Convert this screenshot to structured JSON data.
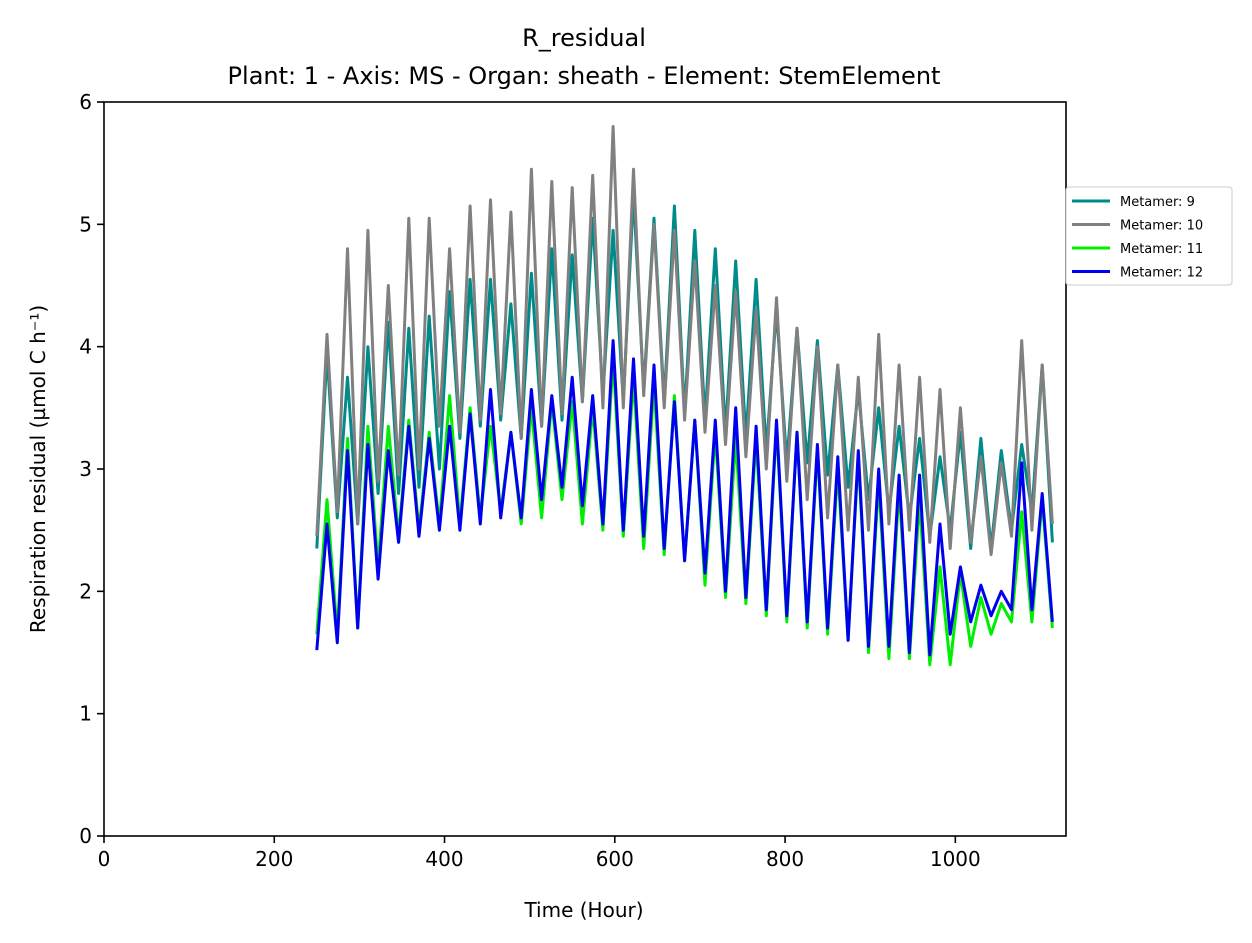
{
  "chart_data": {
    "type": "line",
    "title": "R_residual",
    "subtitle": "Plant: 1 - Axis: MS - Organ: sheath - Element: StemElement",
    "xlabel": "Time (Hour)",
    "ylabel": "Respiration residual (µmol C h⁻¹)",
    "xlim": [
      0,
      1130
    ],
    "ylim": [
      0,
      6
    ],
    "xticks": [
      0,
      200,
      400,
      600,
      800,
      1000
    ],
    "yticks": [
      0,
      1,
      2,
      3,
      4,
      5,
      6
    ],
    "grid": false,
    "legend_position": "outside-right",
    "x_start": 250,
    "x_step": 12,
    "series": [
      {
        "name": "Metamer: 9",
        "color": "#008b8b",
        "values": [
          2.35,
          3.95,
          2.6,
          3.75,
          2.55,
          4.0,
          2.8,
          4.2,
          2.8,
          4.15,
          2.85,
          4.25,
          3.0,
          4.45,
          3.25,
          4.55,
          3.35,
          4.55,
          3.4,
          4.35,
          3.25,
          4.6,
          3.35,
          4.8,
          3.4,
          4.75,
          3.55,
          5.05,
          3.6,
          4.95,
          3.55,
          5.25,
          3.65,
          5.05,
          3.55,
          5.15,
          3.45,
          4.95,
          3.4,
          4.8,
          3.3,
          4.7,
          3.25,
          4.55,
          3.15,
          4.3,
          3.05,
          4.15,
          3.05,
          4.05,
          2.95,
          3.85,
          2.85,
          3.65,
          2.75,
          3.5,
          2.65,
          3.35,
          2.6,
          3.25,
          2.45,
          3.1,
          2.5,
          3.3,
          2.35,
          3.25,
          2.35,
          3.15,
          2.5,
          3.2,
          2.65,
          3.85,
          2.4
        ]
      },
      {
        "name": "Metamer: 10",
        "color": "#808080",
        "values": [
          2.45,
          4.1,
          2.65,
          4.8,
          2.55,
          4.95,
          2.9,
          4.5,
          2.95,
          5.05,
          3.0,
          5.05,
          3.35,
          4.8,
          3.3,
          5.15,
          3.4,
          5.2,
          3.45,
          5.1,
          3.25,
          5.45,
          3.35,
          5.35,
          3.45,
          5.3,
          3.55,
          5.4,
          3.5,
          5.8,
          3.5,
          5.45,
          3.6,
          5.0,
          3.5,
          4.95,
          3.4,
          4.7,
          3.3,
          4.5,
          3.2,
          4.45,
          3.1,
          4.3,
          3.0,
          4.4,
          2.9,
          4.15,
          2.75,
          4.0,
          2.6,
          3.85,
          2.5,
          3.75,
          2.5,
          4.1,
          2.55,
          3.85,
          2.5,
          3.75,
          2.4,
          3.65,
          2.35,
          3.5,
          2.4,
          3.1,
          2.3,
          3.05,
          2.45,
          4.05,
          2.5,
          3.85,
          2.55
        ]
      },
      {
        "name": "Metamer: 11",
        "color": "#00ee00",
        "values": [
          1.65,
          2.75,
          1.65,
          3.25,
          1.7,
          3.35,
          2.2,
          3.35,
          2.45,
          3.4,
          2.5,
          3.3,
          2.55,
          3.6,
          2.55,
          3.5,
          2.6,
          3.35,
          2.65,
          3.3,
          2.55,
          3.5,
          2.6,
          3.55,
          2.75,
          3.55,
          2.55,
          3.5,
          2.5,
          3.9,
          2.45,
          3.75,
          2.35,
          3.7,
          2.3,
          3.6,
          2.25,
          3.4,
          2.05,
          3.3,
          1.95,
          3.25,
          1.9,
          3.25,
          1.8,
          3.35,
          1.75,
          3.3,
          1.7,
          3.15,
          1.65,
          3.0,
          1.6,
          3.1,
          1.5,
          2.9,
          1.45,
          2.85,
          1.45,
          2.75,
          1.4,
          2.2,
          1.4,
          2.15,
          1.55,
          1.95,
          1.65,
          1.9,
          1.75,
          2.65,
          1.75,
          2.75,
          1.7
        ]
      },
      {
        "name": "Metamer: 12",
        "color": "#0000ee",
        "values": [
          1.52,
          2.55,
          1.58,
          3.15,
          1.7,
          3.2,
          2.1,
          3.15,
          2.4,
          3.35,
          2.45,
          3.25,
          2.5,
          3.35,
          2.5,
          3.45,
          2.55,
          3.65,
          2.6,
          3.3,
          2.6,
          3.65,
          2.75,
          3.6,
          2.85,
          3.75,
          2.7,
          3.6,
          2.55,
          4.05,
          2.5,
          3.9,
          2.45,
          3.85,
          2.35,
          3.55,
          2.25,
          3.4,
          2.15,
          3.4,
          2.0,
          3.5,
          1.95,
          3.35,
          1.85,
          3.4,
          1.8,
          3.3,
          1.75,
          3.2,
          1.7,
          3.1,
          1.6,
          3.15,
          1.55,
          3.0,
          1.55,
          2.95,
          1.5,
          2.95,
          1.48,
          2.55,
          1.65,
          2.2,
          1.75,
          2.05,
          1.8,
          2.0,
          1.85,
          3.05,
          1.85,
          2.8,
          1.75
        ]
      }
    ]
  }
}
